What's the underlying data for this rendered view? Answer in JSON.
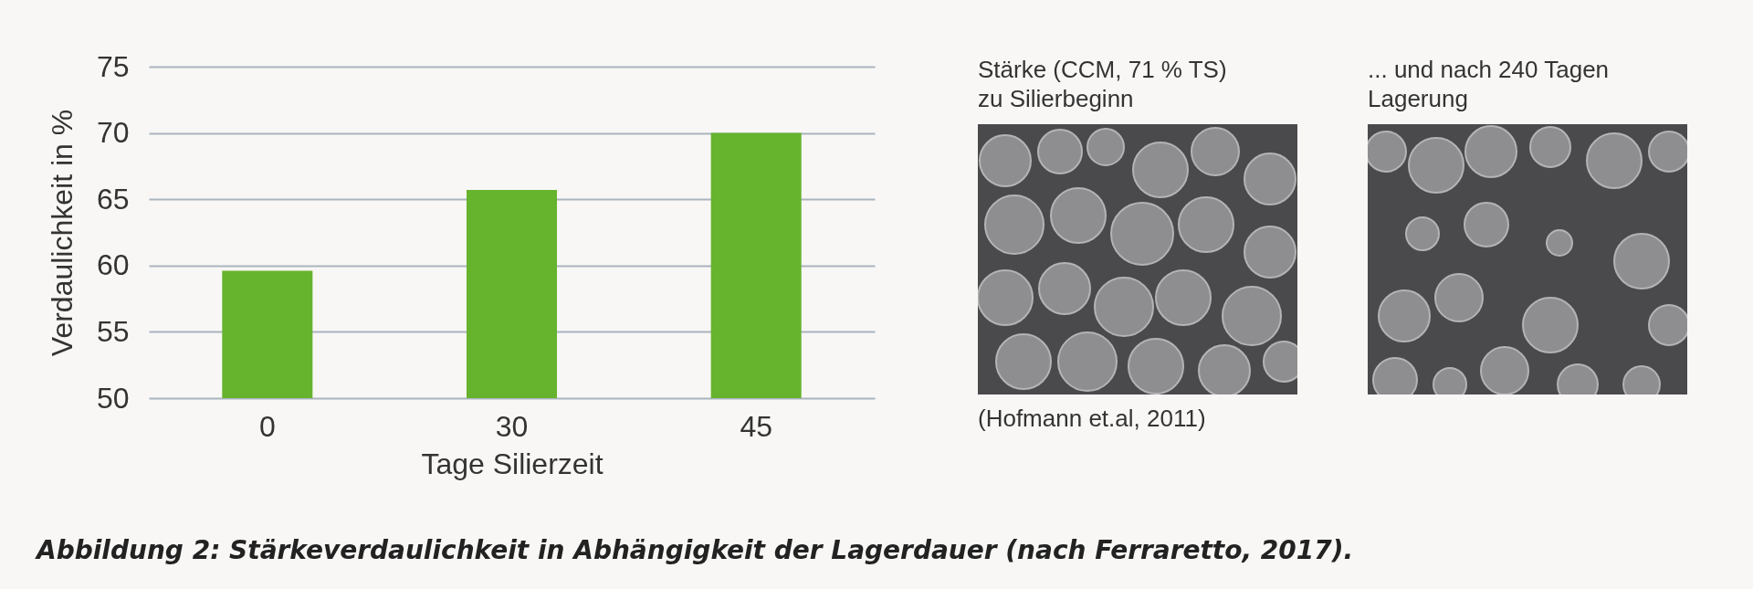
{
  "chart_data": {
    "type": "bar",
    "xlabel": "Tage Silierzeit",
    "ylabel": "Verdaulichkeit in %",
    "categories": [
      "0",
      "30",
      "45"
    ],
    "values": [
      59.6,
      65.7,
      70.0
    ],
    "color": "#66b32e",
    "ylim": [
      50,
      75
    ],
    "yticks": [
      50,
      55,
      60,
      65,
      70,
      75
    ],
    "grid": "y",
    "annotations": [
      "Stärke (CCM, 71 % TS)\nzu Silierbeginn",
      "... und nach 240 Tagen\nLagerung",
      "(Hofmann et.al, 2011)",
      "Abbildung 2: Stärkeverdaulichkeit in Abhängigkeit der Lagerdauer (nach Ferraretto, 2017)."
    ]
  }
}
